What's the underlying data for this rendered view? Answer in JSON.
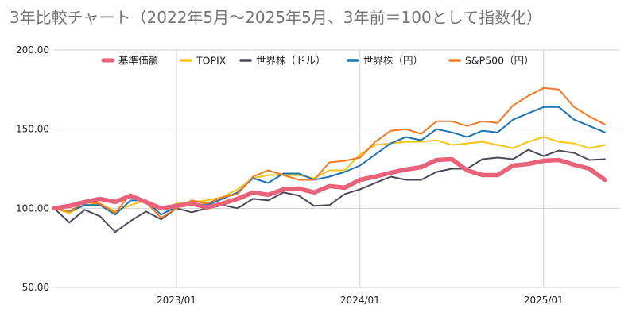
{
  "chart_data": {
    "type": "line",
    "title": "3年比較チャート（2022年5月〜2025年5月、3年前＝100として指数化）",
    "ylim": [
      50,
      200
    ],
    "y_ticks": [
      "50.00",
      "100.00",
      "150.00",
      "200.00"
    ],
    "y_tick_values": [
      50,
      100,
      150,
      200
    ],
    "x_range": [
      "2022-05",
      "2025-06"
    ],
    "x_ticks": [
      {
        "label": "2023/01",
        "date": "2023-01"
      },
      {
        "label": "2024/01",
        "date": "2024-01"
      },
      {
        "label": "2025/01",
        "date": "2025-01"
      }
    ],
    "grid": true,
    "legend_position": "top",
    "x": [
      "2022-05",
      "2022-06",
      "2022-07",
      "2022-08",
      "2022-09",
      "2022-10",
      "2022-11",
      "2022-12",
      "2023-01",
      "2023-02",
      "2023-03",
      "2023-04",
      "2023-05",
      "2023-06",
      "2023-07",
      "2023-08",
      "2023-09",
      "2023-10",
      "2023-11",
      "2023-12",
      "2024-01",
      "2024-02",
      "2024-03",
      "2024-04",
      "2024-05",
      "2024-06",
      "2024-07",
      "2024-08",
      "2024-09",
      "2024-10",
      "2024-11",
      "2024-12",
      "2025-01",
      "2025-02",
      "2025-03",
      "2025-04",
      "2025-05"
    ],
    "series": [
      {
        "name": "基準価額",
        "color": "#e8627a",
        "width": 5.5,
        "values": [
          100,
          101.5,
          104,
          106,
          104,
          108,
          104,
          100,
          101.5,
          103,
          100.5,
          103,
          106,
          110,
          108.5,
          112,
          112.5,
          110,
          114,
          113,
          118,
          120,
          122.5,
          124.5,
          126,
          130.5,
          131,
          124,
          121,
          121,
          127,
          128,
          130,
          130.5,
          127.5,
          125,
          118
        ]
      },
      {
        "name": "TOPIX",
        "color": "#f5c518",
        "width": 2,
        "values": [
          100,
          97,
          102,
          103,
          98,
          102,
          105,
          99,
          103,
          104,
          105,
          107,
          112,
          119,
          121,
          121,
          121,
          119,
          124,
          124,
          134,
          140,
          141,
          142,
          142,
          143,
          140,
          141,
          142,
          140,
          138,
          142,
          145,
          142,
          141,
          138,
          140
        ]
      },
      {
        "name": "世界株（ドル）",
        "color": "#4a4a5a",
        "width": 2,
        "values": [
          100,
          91,
          99,
          95,
          85,
          92,
          98,
          93,
          100,
          97.5,
          100,
          102,
          100,
          106,
          105,
          110,
          108,
          101.5,
          102,
          109,
          112,
          116,
          120,
          118,
          118,
          123,
          125,
          125,
          131,
          132,
          131,
          137,
          133,
          136.5,
          135,
          130.5,
          131
        ]
      },
      {
        "name": "世界株（円）",
        "color": "#1f74b4",
        "width": 2,
        "values": [
          100,
          98,
          102,
          102,
          96,
          105,
          105,
          96,
          101,
          103,
          102,
          106,
          110,
          119,
          116,
          122,
          122,
          118,
          120,
          123,
          127,
          134,
          141,
          145,
          143,
          150,
          148,
          145,
          149,
          148,
          156,
          160,
          164,
          164,
          156,
          152,
          148
        ]
      },
      {
        "name": "S&P500（円）",
        "color": "#f07a22",
        "width": 2,
        "values": [
          100,
          98,
          104,
          103,
          97,
          109,
          104,
          94,
          100,
          105,
          103,
          107,
          109,
          120,
          124,
          121,
          118,
          118,
          129,
          130,
          132,
          142,
          149,
          150,
          147,
          155,
          155,
          152,
          155,
          154,
          165,
          171,
          176,
          175,
          164,
          158,
          153
        ]
      }
    ]
  }
}
